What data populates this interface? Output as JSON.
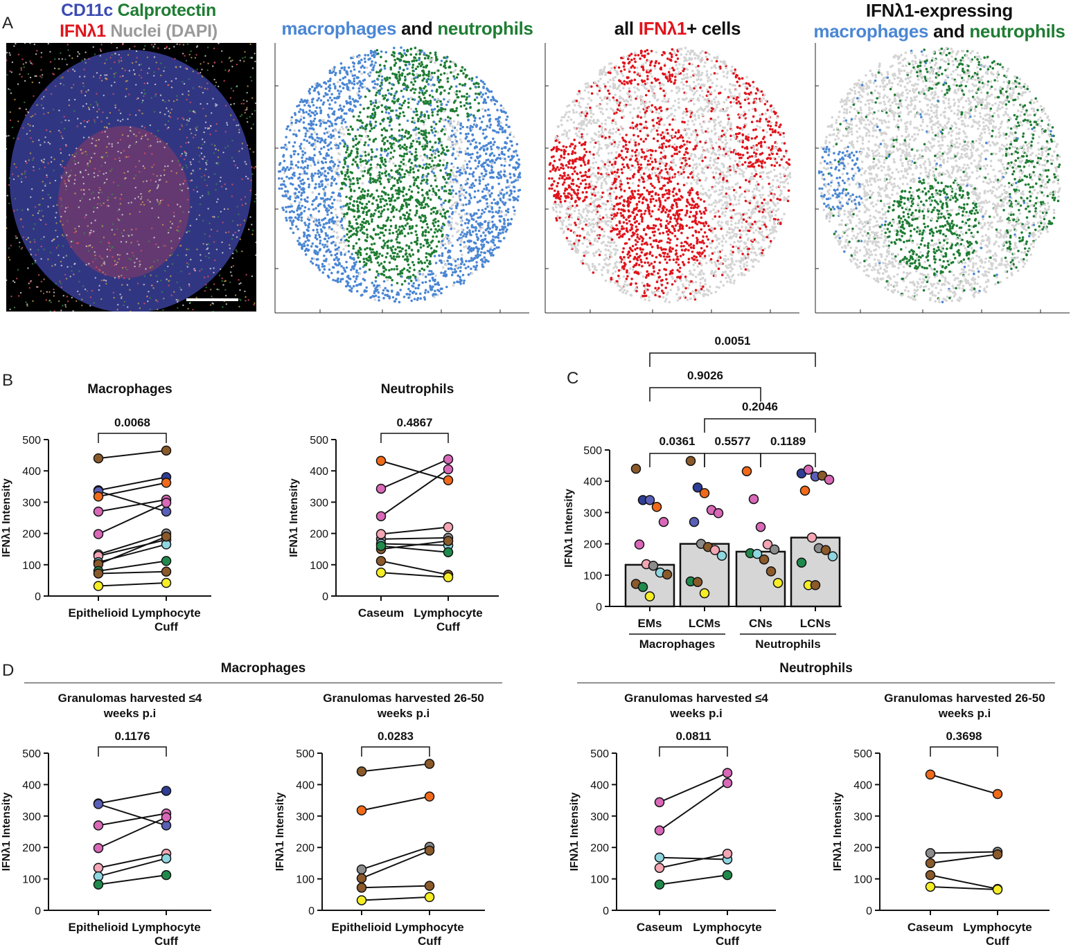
{
  "panel_letters": {
    "a": "A",
    "b": "B",
    "c": "C",
    "d": "D"
  },
  "panel_a": {
    "micro_title": {
      "cd11c": "CD11c",
      "calprotectin": "Calprotectin",
      "ifn": "IFNλ1",
      "nuclei": "Nuclei (DAPI)"
    },
    "map1_title": {
      "mac": "macrophages",
      "and": " and ",
      "neu": "neutrophils"
    },
    "map2_title": {
      "pre": "all ",
      "ifn": "IFNλ1",
      "post": "+ cells"
    },
    "map3_title": {
      "line1": "IFNλ1-expressing",
      "mac": "macrophages",
      "and": " and ",
      "neu": "neutrophils"
    }
  },
  "colors": {
    "macrophage": "#4a86d4",
    "neutrophil": "#1e7d33",
    "ifn": "#e0141c",
    "background_cells": "#d4d4d4",
    "brown": "#8b5a2b",
    "yellow": "#f5ee25",
    "green": "#1f8a4c",
    "cyan": "#8fd7e0",
    "pink": "#f4a6b4",
    "magenta": "#d968b8",
    "orange": "#f06a1a",
    "blue": "#2f3d96",
    "purple": "#5a5fb8",
    "gray": "#8c8c8c"
  },
  "section_headers": {
    "macrophages": "Macrophages",
    "neutrophils": "Neutrophils"
  },
  "chart_data": [
    {
      "id": "b1",
      "type": "scatter",
      "title": "Macrophages",
      "ylabel": "IFNλ1 Intensity",
      "categories": [
        "Epithelioid",
        "Lymphocyte\nCuff"
      ],
      "ylim": [
        0,
        500
      ],
      "yticks": [
        "0",
        "100",
        "200",
        "300",
        "400",
        "500"
      ],
      "pvalue": "0.0068",
      "pairs": [
        {
          "color": "brown",
          "values": [
            440,
            465
          ]
        },
        {
          "color": "blue",
          "values": [
            338,
            380
          ]
        },
        {
          "color": "purple",
          "values": [
            335,
            270
          ]
        },
        {
          "color": "orange",
          "values": [
            318,
            362
          ]
        },
        {
          "color": "magenta",
          "values": [
            270,
            308
          ]
        },
        {
          "color": "magenta",
          "values": [
            198,
            298
          ]
        },
        {
          "color": "gray",
          "values": [
            133,
            200
          ]
        },
        {
          "color": "pink",
          "values": [
            128,
            180
          ]
        },
        {
          "color": "cyan",
          "values": [
            108,
            165
          ]
        },
        {
          "color": "brown",
          "values": [
            102,
            190
          ]
        },
        {
          "color": "green",
          "values": [
            80,
            112
          ]
        },
        {
          "color": "brown",
          "values": [
            72,
            78
          ]
        },
        {
          "color": "yellow",
          "values": [
            32,
            42
          ]
        }
      ]
    },
    {
      "id": "b2",
      "type": "scatter",
      "title": "Neutrophils",
      "ylabel": "IFNλ1 Intensity",
      "categories": [
        "Caseum",
        "Lymphocyte\nCuff"
      ],
      "ylim": [
        0,
        500
      ],
      "yticks": [
        "0",
        "100",
        "200",
        "300",
        "400",
        "500"
      ],
      "pvalue": "0.4867",
      "pairs": [
        {
          "color": "orange",
          "values": [
            432,
            370
          ]
        },
        {
          "color": "magenta",
          "values": [
            343,
            437
          ]
        },
        {
          "color": "magenta",
          "values": [
            255,
            405
          ]
        },
        {
          "color": "gray",
          "values": [
            182,
            186
          ]
        },
        {
          "color": "pink",
          "values": [
            198,
            220
          ]
        },
        {
          "color": "cyan",
          "values": [
            167,
            162
          ]
        },
        {
          "color": "brown",
          "values": [
            150,
            176
          ]
        },
        {
          "color": "green",
          "values": [
            160,
            140
          ]
        },
        {
          "color": "brown",
          "values": [
            112,
            68
          ]
        },
        {
          "color": "yellow",
          "values": [
            75,
            60
          ]
        }
      ]
    },
    {
      "id": "c",
      "type": "bar",
      "ylabel": "IFNλ1 Intensity",
      "ylim": [
        0,
        500
      ],
      "yticks": [
        "0",
        "100",
        "200",
        "300",
        "400",
        "500"
      ],
      "categories": [
        "EMs",
        "LCMs",
        "CNs",
        "LCNs"
      ],
      "groups": [
        {
          "label": "Macrophages",
          "span": [
            0,
            1
          ]
        },
        {
          "label": "Neutrophils",
          "span": [
            2,
            3
          ]
        }
      ],
      "values": [
        133,
        200,
        175,
        220
      ],
      "points": [
        [
          {
            "c": "brown",
            "v": 440
          },
          {
            "c": "blue",
            "v": 340
          },
          {
            "c": "purple",
            "v": 340
          },
          {
            "c": "orange",
            "v": 318
          },
          {
            "c": "magenta",
            "v": 270
          },
          {
            "c": "magenta",
            "v": 198
          },
          {
            "c": "pink",
            "v": 135
          },
          {
            "c": "gray",
            "v": 130
          },
          {
            "c": "cyan",
            "v": 108
          },
          {
            "c": "brown",
            "v": 102
          },
          {
            "c": "brown",
            "v": 72
          },
          {
            "c": "green",
            "v": 62
          },
          {
            "c": "yellow",
            "v": 32
          }
        ],
        [
          {
            "c": "brown",
            "v": 465
          },
          {
            "c": "blue",
            "v": 380
          },
          {
            "c": "orange",
            "v": 362
          },
          {
            "c": "magenta",
            "v": 308
          },
          {
            "c": "magenta",
            "v": 298
          },
          {
            "c": "purple",
            "v": 270
          },
          {
            "c": "gray",
            "v": 200
          },
          {
            "c": "brown",
            "v": 190
          },
          {
            "c": "pink",
            "v": 180
          },
          {
            "c": "cyan",
            "v": 162
          },
          {
            "c": "green",
            "v": 80
          },
          {
            "c": "brown",
            "v": 78
          },
          {
            "c": "yellow",
            "v": 42
          }
        ],
        [
          {
            "c": "orange",
            "v": 432
          },
          {
            "c": "magenta",
            "v": 343
          },
          {
            "c": "magenta",
            "v": 254
          },
          {
            "c": "pink",
            "v": 198
          },
          {
            "c": "gray",
            "v": 182
          },
          {
            "c": "green",
            "v": 170
          },
          {
            "c": "cyan",
            "v": 168
          },
          {
            "c": "brown",
            "v": 150
          },
          {
            "c": "brown",
            "v": 112
          },
          {
            "c": "yellow",
            "v": 75
          }
        ],
        [
          {
            "c": "blue",
            "v": 425
          },
          {
            "c": "magenta",
            "v": 437
          },
          {
            "c": "purple",
            "v": 415
          },
          {
            "c": "brown",
            "v": 418
          },
          {
            "c": "magenta",
            "v": 405
          },
          {
            "c": "orange",
            "v": 370
          },
          {
            "c": "pink",
            "v": 220
          },
          {
            "c": "gray",
            "v": 186
          },
          {
            "c": "brown",
            "v": 180
          },
          {
            "c": "cyan",
            "v": 160
          },
          {
            "c": "green",
            "v": 140
          },
          {
            "c": "yellow",
            "v": 68
          },
          {
            "c": "brown",
            "v": 68
          }
        ]
      ],
      "comparisons": [
        {
          "from": 0,
          "to": 3,
          "label": "0.0051"
        },
        {
          "from": 0,
          "to": 2,
          "label": "0.9026"
        },
        {
          "from": 1,
          "to": 3,
          "label": "0.2046"
        },
        {
          "from": 0,
          "to": 1,
          "label": "0.0361"
        },
        {
          "from": 1,
          "to": 2,
          "label": "0.5577"
        },
        {
          "from": 2,
          "to": 3,
          "label": "0.1189"
        }
      ]
    },
    {
      "id": "d1",
      "type": "scatter",
      "title": "Granulomas harvested ≤4\nweeks p.i",
      "ylabel": "IFNλ1 Intensity",
      "categories": [
        "Epithelioid",
        "Lymphocyte\nCuff"
      ],
      "ylim": [
        0,
        500
      ],
      "yticks": [
        "0",
        "100",
        "200",
        "300",
        "400",
        "500"
      ],
      "pvalue": "0.1176",
      "pairs": [
        {
          "color": "blue",
          "values": [
            340,
            380
          ]
        },
        {
          "color": "purple",
          "values": [
            338,
            270
          ]
        },
        {
          "color": "magenta",
          "values": [
            270,
            308
          ]
        },
        {
          "color": "magenta",
          "values": [
            198,
            296
          ]
        },
        {
          "color": "pink",
          "values": [
            135,
            180
          ]
        },
        {
          "color": "cyan",
          "values": [
            108,
            165
          ]
        },
        {
          "color": "green",
          "values": [
            82,
            112
          ]
        }
      ]
    },
    {
      "id": "d2",
      "type": "scatter",
      "title": "Granulomas harvested 26-50\nweeks p.i",
      "ylabel": "IFNλ1 Intensity",
      "categories": [
        "Epithelioid",
        "Lymphocyte\nCuff"
      ],
      "ylim": [
        0,
        500
      ],
      "yticks": [
        "0",
        "100",
        "200",
        "300",
        "400",
        "500"
      ],
      "pvalue": "0.0283",
      "pairs": [
        {
          "color": "brown",
          "values": [
            442,
            466
          ]
        },
        {
          "color": "orange",
          "values": [
            318,
            362
          ]
        },
        {
          "color": "gray",
          "values": [
            130,
            202
          ]
        },
        {
          "color": "brown",
          "values": [
            102,
            190
          ]
        },
        {
          "color": "brown",
          "values": [
            72,
            78
          ]
        },
        {
          "color": "yellow",
          "values": [
            32,
            42
          ]
        }
      ]
    },
    {
      "id": "d3",
      "type": "scatter",
      "title": "Granulomas harvested ≤4\nweeks p.i",
      "ylabel": "IFNλ1 Intensity",
      "categories": [
        "Caseum",
        "Lymphocyte\nCuff"
      ],
      "ylim": [
        0,
        500
      ],
      "yticks": [
        "0",
        "100",
        "200",
        "300",
        "400",
        "500"
      ],
      "pvalue": "0.0811",
      "pairs": [
        {
          "color": "magenta",
          "values": [
            344,
            437
          ]
        },
        {
          "color": "magenta",
          "values": [
            254,
            405
          ]
        },
        {
          "color": "cyan",
          "values": [
            168,
            162
          ]
        },
        {
          "color": "pink",
          "values": [
            135,
            180
          ]
        },
        {
          "color": "green",
          "values": [
            82,
            112
          ]
        }
      ]
    },
    {
      "id": "d4",
      "type": "scatter",
      "title": "Granulomas harvested 26-50\nweeks p.i",
      "ylabel": "IFNλ1 Intensity",
      "categories": [
        "Caseum",
        "Lymphocyte\nCuff"
      ],
      "ylim": [
        0,
        500
      ],
      "yticks": [
        "0",
        "100",
        "200",
        "300",
        "400",
        "500"
      ],
      "pvalue": "0.3698",
      "pairs": [
        {
          "color": "orange",
          "values": [
            432,
            370
          ]
        },
        {
          "color": "gray",
          "values": [
            182,
            186
          ]
        },
        {
          "color": "brown",
          "values": [
            150,
            178
          ]
        },
        {
          "color": "brown",
          "values": [
            112,
            68
          ]
        },
        {
          "color": "yellow",
          "values": [
            75,
            66
          ]
        }
      ]
    }
  ]
}
